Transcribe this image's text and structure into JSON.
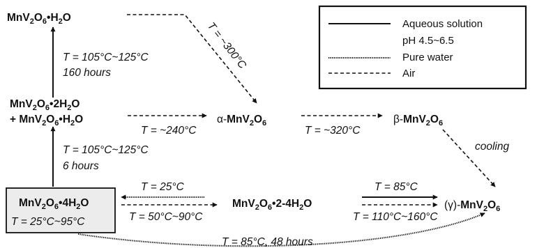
{
  "legend": {
    "solid": "Aqueous solution",
    "solid_line2": "pH 4.5~6.5",
    "dotted": "Pure water",
    "dashed": "Air"
  },
  "compounds": {
    "monohydrate": {
      "base": "MnV",
      "s1": "2",
      "mid": "O",
      "s2": "6",
      "tail": "•H",
      "s3": "2",
      "end": "O"
    },
    "mixed_line1": {
      "base": "MnV",
      "s1": "2",
      "mid": "O",
      "s2": "6",
      "tail": "•2H",
      "s3": "2",
      "end": "O"
    },
    "mixed_line2": {
      "base": "+ MnV",
      "s1": "2",
      "mid": "O",
      "s2": "6",
      "tail": "•H",
      "s3": "2",
      "end": "O"
    },
    "alpha": {
      "prefix": "α-",
      "base": "MnV",
      "s1": "2",
      "mid": "O",
      "s2": "6"
    },
    "beta": {
      "prefix": "β-",
      "base": "MnV",
      "s1": "2",
      "mid": "O",
      "s2": "6"
    },
    "tetrahydrate": {
      "base": "MnV",
      "s1": "2",
      "mid": "O",
      "s2": "6",
      "tail": "•4H",
      "s3": "2",
      "end": "O"
    },
    "tetrahydrate_cond": "T = 25°C~95°C",
    "hydrate_2_4": {
      "base": "MnV",
      "s1": "2",
      "mid": "O",
      "s2": "6",
      "tail": "•2-4H",
      "s3": "2",
      "end": "O"
    },
    "gamma": {
      "prefix": "(γ)-",
      "base": "MnV",
      "s1": "2",
      "mid": "O",
      "s2": "6"
    }
  },
  "conditions": {
    "up_top_temp": "T = 105°C~125°C",
    "up_top_time": "160 hours",
    "up_bottom_temp": "T = 105°C~125°C",
    "up_bottom_time": "6 hours",
    "diag_air": "T = ~300°C",
    "to_alpha": "T = ~240°C",
    "to_beta": "T = ~320°C",
    "cooling": "cooling",
    "back_water": "T = 25°C",
    "fwd_water": "T = 50°C~90°C",
    "aq_top": "T = 85°C",
    "aq_bottom": "T = 110°C~160°C",
    "long_water": "T = 85°C, 48 hours"
  }
}
